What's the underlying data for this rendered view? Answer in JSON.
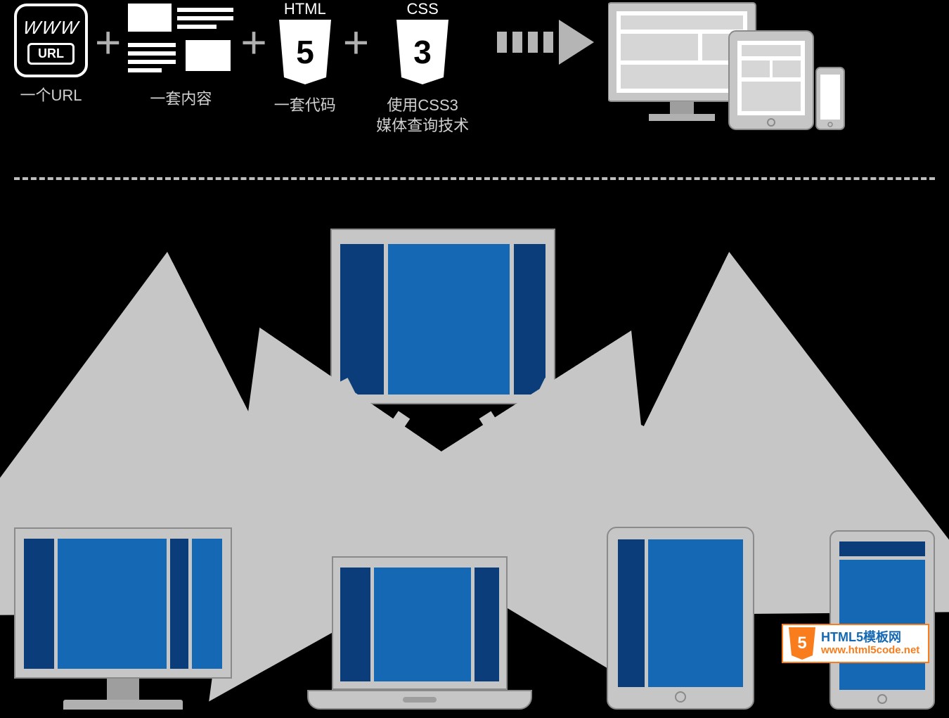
{
  "colors": {
    "background": "#000000",
    "device_body": "#c6c6c6",
    "device_border": "#8a8a8a",
    "panel_dark": "#0a3d7a",
    "panel_light": "#1568b3",
    "arrow_gray": "#b5b5b5",
    "text_light": "#d0d0d0",
    "white": "#ffffff",
    "orange": "#f97d1c"
  },
  "formula": {
    "url": {
      "www": "WWW",
      "tag": "URL",
      "label": "一个URL"
    },
    "content": {
      "label": "一套内容"
    },
    "html5": {
      "top": "HTML",
      "glyph": "5",
      "label": "一套代码"
    },
    "css3": {
      "top": "CSS",
      "glyph": "3",
      "label": "使用CSS3\n媒体查询技术"
    },
    "plus": "+"
  },
  "diagram": {
    "type": "infographic",
    "source_layout": {
      "columns": [
        {
          "role": "sidebar-left",
          "color": "#0a3d7a",
          "flex": 0.22
        },
        {
          "role": "main",
          "color": "#1568b3",
          "flex": 0.62
        },
        {
          "role": "sidebar-right",
          "color": "#0a3d7a",
          "flex": 0.16
        }
      ]
    },
    "targets": [
      {
        "device": "desktop",
        "layout": [
          {
            "role": "sidebar-left",
            "color": "#0a3d7a",
            "flex": 0.16
          },
          {
            "role": "main",
            "color": "#1568b3",
            "flex": 0.58
          },
          {
            "role": "sidebar-right",
            "color": "#0a3d7a",
            "flex": 0.1
          },
          {
            "role": "extra",
            "color": "#1568b3",
            "flex": 0.16
          }
        ]
      },
      {
        "device": "laptop",
        "layout": [
          {
            "role": "sidebar-left",
            "color": "#0a3d7a",
            "flex": 0.2
          },
          {
            "role": "main",
            "color": "#1568b3",
            "flex": 0.64
          },
          {
            "role": "sidebar-right",
            "color": "#0a3d7a",
            "flex": 0.16
          }
        ]
      },
      {
        "device": "tablet",
        "layout": [
          {
            "role": "sidebar-left",
            "color": "#0a3d7a",
            "flex": 0.22
          },
          {
            "role": "main",
            "color": "#1568b3",
            "flex": 0.78
          }
        ]
      },
      {
        "device": "phone",
        "orientation": "portrait",
        "layout_rows": [
          {
            "role": "header",
            "color": "#0a3d7a",
            "flex": 0.1
          },
          {
            "role": "main",
            "color": "#1568b3",
            "flex": 0.9
          }
        ]
      }
    ],
    "arrows": [
      {
        "from": "source",
        "to": "desktop"
      },
      {
        "from": "source",
        "to": "laptop"
      },
      {
        "from": "source",
        "to": "tablet"
      },
      {
        "from": "source",
        "to": "phone"
      }
    ]
  },
  "watermark": {
    "line1": "HTML5模板网",
    "line2": "www.html5code.net",
    "shield_glyph": "5",
    "shield_color": "#f97d1c"
  }
}
